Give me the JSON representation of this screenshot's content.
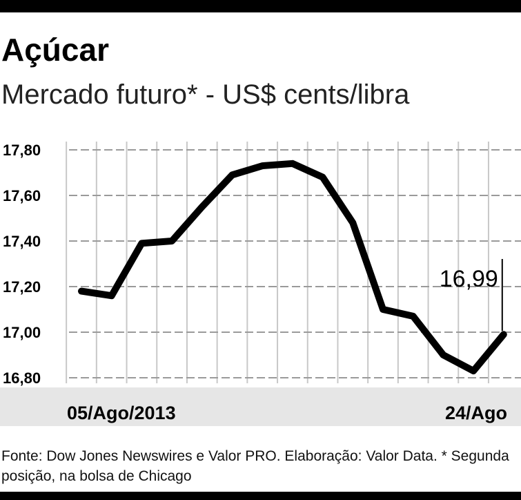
{
  "chart_data": {
    "type": "line",
    "title": "Açúcar",
    "subtitle": "Mercado futuro* - US$ cents/libra",
    "categories": [
      "05/Ago/2013",
      null,
      null,
      null,
      null,
      null,
      null,
      null,
      null,
      null,
      null,
      null,
      null,
      null,
      "24/Ago"
    ],
    "values": [
      17.18,
      17.16,
      17.39,
      17.4,
      17.55,
      17.69,
      17.73,
      17.74,
      17.68,
      17.48,
      17.1,
      17.07,
      16.9,
      16.83,
      16.99
    ],
    "value_labels": [
      null,
      null,
      null,
      null,
      null,
      null,
      null,
      null,
      null,
      null,
      null,
      null,
      null,
      null,
      "16,99"
    ],
    "color": "#000000",
    "ylim": [
      16.8,
      17.8
    ],
    "yticks": [
      {
        "value": 16.8,
        "label": "16,80"
      },
      {
        "value": 17.0,
        "label": "17,00"
      },
      {
        "value": 17.2,
        "label": "17,20"
      },
      {
        "value": 17.4,
        "label": "17,40"
      },
      {
        "value": 17.6,
        "label": "17,60"
      },
      {
        "value": 17.8,
        "label": "17,80"
      }
    ],
    "grid": true,
    "source": "Fonte: Dow Jones Newswires e Valor PRO. Elaboração: Valor Data. * Segunda posição, na bolsa de Chicago"
  }
}
